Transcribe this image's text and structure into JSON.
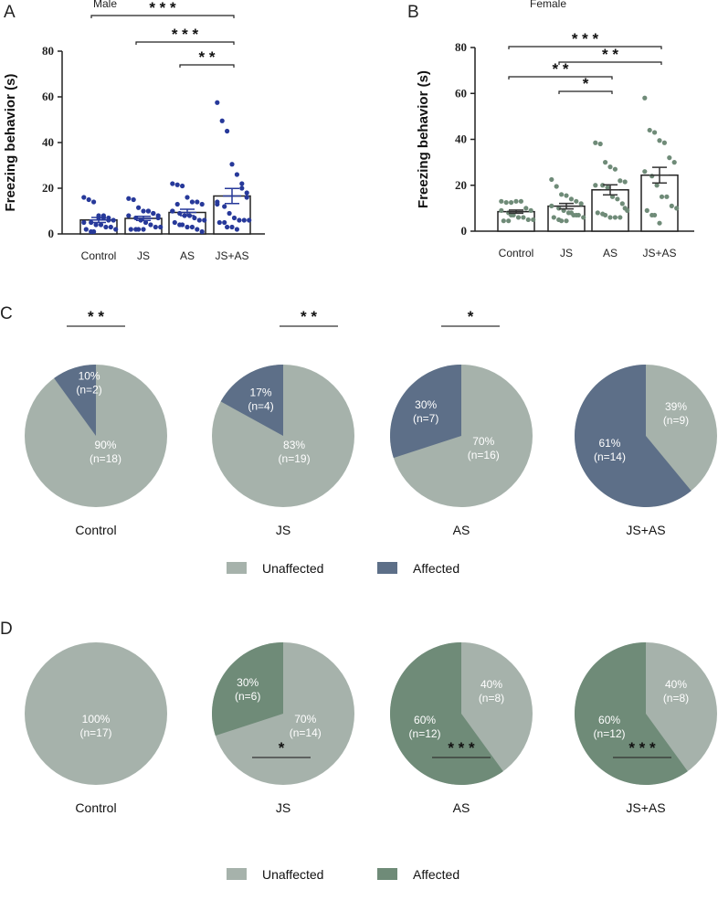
{
  "colors": {
    "male_dot": "#27399a",
    "female_dot": "#6f8b78",
    "unaffected": "#a6b2ab",
    "affected_male": "#5d6f88",
    "affected_female": "#6f8b78"
  },
  "chart_data": [
    {
      "panel": "A",
      "type": "bar",
      "title": "Male",
      "ylabel": "Freezing behavior (s)",
      "ylim": [
        0,
        80
      ],
      "yticks": [
        0,
        20,
        40,
        60,
        80
      ],
      "categories": [
        "Control",
        "JS",
        "AS",
        "JS+AS"
      ],
      "means": [
        6.1,
        6.8,
        9.4,
        16.6
      ],
      "sem": [
        1.1,
        0.9,
        1.4,
        3.3
      ],
      "points": [
        [
          16,
          15,
          14,
          8,
          7,
          7,
          6,
          5,
          5,
          4,
          4,
          3,
          3,
          2,
          2,
          1,
          1,
          7,
          8,
          6
        ],
        [
          15.5,
          15,
          11.5,
          10,
          10,
          9,
          8,
          8,
          7,
          6,
          5,
          4,
          3,
          3,
          2,
          2,
          2,
          2,
          10,
          9,
          7
        ],
        [
          22,
          21.5,
          21,
          16,
          14,
          14,
          13,
          10,
          9,
          8,
          8,
          7,
          6,
          6,
          5,
          4,
          4,
          3,
          3,
          2,
          1,
          10,
          13
        ],
        [
          57.5,
          49.5,
          45,
          30.5,
          26,
          22,
          18,
          14,
          12,
          9,
          7,
          6,
          6,
          6,
          5,
          5,
          3,
          3,
          2,
          20,
          16,
          13
        ]
      ],
      "significance": [
        {
          "from": 0,
          "to": 3,
          "label": "* * *"
        },
        {
          "from": 1,
          "to": 3,
          "label": "* * *"
        },
        {
          "from": 2,
          "to": 3,
          "label": "* *"
        }
      ]
    },
    {
      "panel": "B",
      "type": "bar",
      "title": "Female",
      "ylabel": "Freezing behavior (s)",
      "ylim": [
        0,
        80
      ],
      "yticks": [
        0,
        20,
        40,
        60,
        80
      ],
      "categories": [
        "Control",
        "JS",
        "AS",
        "JS+AS"
      ],
      "means": [
        8.5,
        10.9,
        18,
        24.4
      ],
      "sem": [
        0.7,
        1.2,
        2.2,
        3.4
      ],
      "points": [
        [
          13,
          12.5,
          12.5,
          13,
          13,
          10,
          9,
          9,
          8,
          7,
          6,
          6,
          5,
          5,
          4.5,
          4.5,
          7
        ],
        [
          22.5,
          19.5,
          16,
          15.5,
          14,
          13,
          12,
          11,
          10,
          9,
          8,
          7,
          7,
          6,
          6,
          5,
          4.5,
          4.5,
          8,
          7
        ],
        [
          38.5,
          38,
          30,
          28,
          27,
          22,
          21.5,
          20,
          20,
          19,
          15,
          14,
          12,
          9,
          8,
          7.5,
          7,
          6,
          6,
          6,
          10
        ],
        [
          58,
          44,
          43,
          39.5,
          38.5,
          32,
          30,
          26,
          24,
          20,
          15,
          15,
          11,
          10,
          9,
          7,
          7,
          3.5
        ]
      ],
      "significance": [
        {
          "from": 0,
          "to": 3,
          "label": "* * *"
        },
        {
          "from": 1,
          "to": 3,
          "label": "* *"
        },
        {
          "from": 0,
          "to": 2,
          "label": "* *"
        },
        {
          "from": 1,
          "to": 2,
          "label": "*"
        }
      ]
    },
    {
      "panel": "C",
      "type": "pie",
      "legend": [
        "Unaffected",
        "Affected"
      ],
      "pies": [
        {
          "label": "Control",
          "affected": 10,
          "unaffected": 90,
          "t_aff": "10%",
          "n_aff": "(n=2)",
          "t_un": "90%",
          "n_un": "(n=18)",
          "sig": "* *"
        },
        {
          "label": "JS",
          "affected": 17,
          "unaffected": 83,
          "t_aff": "17%",
          "n_aff": "(n=4)",
          "t_un": "83%",
          "n_un": "(n=19)",
          "sig": "* *"
        },
        {
          "label": "AS",
          "affected": 30,
          "unaffected": 70,
          "t_aff": "30%",
          "n_aff": "(n=7)",
          "t_un": "70%",
          "n_un": "(n=16)",
          "sig": "*"
        },
        {
          "label": "JS+AS",
          "affected": 61,
          "unaffected": 39,
          "t_aff": "61%",
          "n_aff": "(n=14)",
          "t_un": "39%",
          "n_un": "(n=9)",
          "sig": ""
        }
      ]
    },
    {
      "panel": "D",
      "type": "pie",
      "legend": [
        "Unaffected",
        "Affected"
      ],
      "pies": [
        {
          "label": "Control",
          "affected": 0,
          "unaffected": 100,
          "t_aff": "",
          "n_aff": "",
          "t_un": "100%",
          "n_un": "(n=17)",
          "sig": ""
        },
        {
          "label": "JS",
          "affected": 30,
          "unaffected": 70,
          "t_aff": "30%",
          "n_aff": "(n=6)",
          "t_un": "70%",
          "n_un": "(n=14)",
          "sig": "*"
        },
        {
          "label": "AS",
          "affected": 60,
          "unaffected": 40,
          "t_aff": "60%",
          "n_aff": "(n=12)",
          "t_un": "40%",
          "n_un": "(n=8)",
          "sig": "* * *"
        },
        {
          "label": "JS+AS",
          "affected": 60,
          "unaffected": 40,
          "t_aff": "60%",
          "n_aff": "(n=12)",
          "t_un": "40%",
          "n_un": "(n=8)",
          "sig": "* * *"
        }
      ]
    }
  ]
}
